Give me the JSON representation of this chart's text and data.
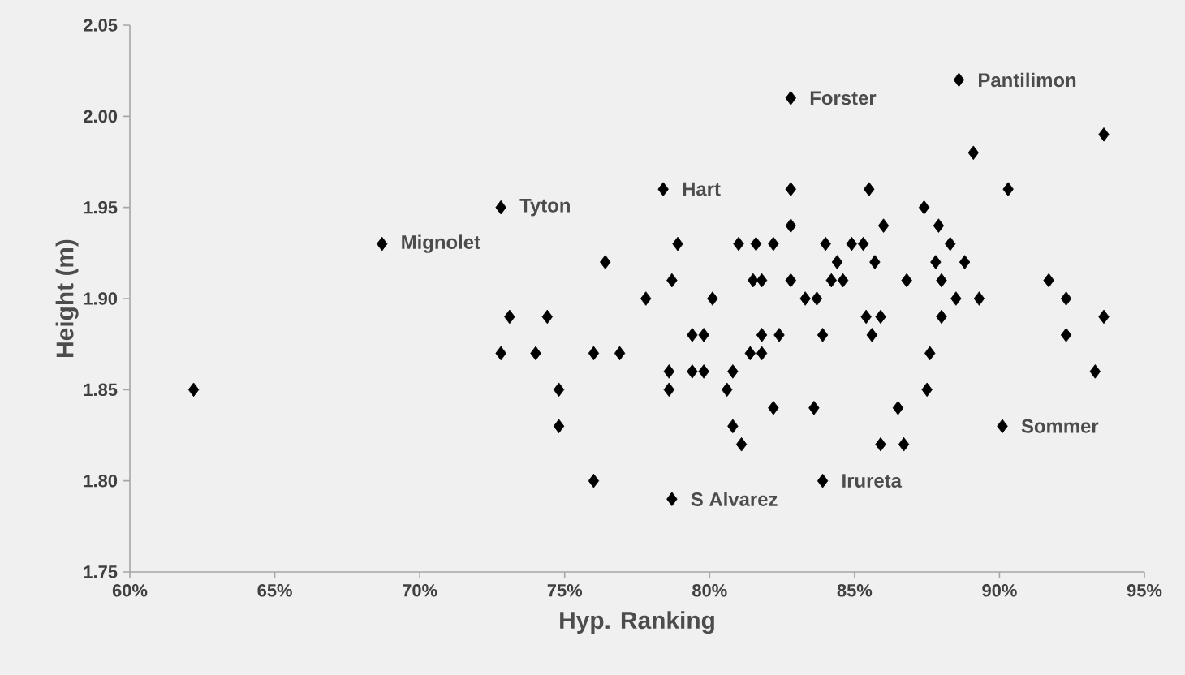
{
  "chart_data": {
    "type": "scatter",
    "xlabel": "Hyp. Ranking",
    "ylabel": "Height (m)",
    "marker": "diamond",
    "xlim": [
      60,
      95
    ],
    "ylim": [
      1.75,
      2.05
    ],
    "xticks": [
      {
        "value": 60,
        "label": "60%"
      },
      {
        "value": 65,
        "label": "65%"
      },
      {
        "value": 70,
        "label": "70%"
      },
      {
        "value": 75,
        "label": "75%"
      },
      {
        "value": 80,
        "label": "80%"
      },
      {
        "value": 85,
        "label": "85%"
      },
      {
        "value": 90,
        "label": "90%"
      },
      {
        "value": 95,
        "label": "95%"
      }
    ],
    "yticks": [
      {
        "value": 1.75,
        "label": "1.75"
      },
      {
        "value": 1.8,
        "label": "1.80"
      },
      {
        "value": 1.85,
        "label": "1.85"
      },
      {
        "value": 1.9,
        "label": "1.90"
      },
      {
        "value": 1.95,
        "label": "1.95"
      },
      {
        "value": 2.0,
        "label": "2.00"
      },
      {
        "value": 2.05,
        "label": "2.05"
      }
    ],
    "series": [
      {
        "color": "#000000",
        "x": [
          62.2,
          68.7,
          72.8,
          73.1,
          72.8,
          74.0,
          74.4,
          74.8,
          74.8,
          76.4,
          76.0,
          76.9,
          76.0,
          77.8,
          78.4,
          78.9,
          78.7,
          78.6,
          78.6,
          78.7,
          79.4,
          79.8,
          79.4,
          79.8,
          80.1,
          80.6,
          80.8,
          80.8,
          81.1,
          81.0,
          81.6,
          82.2,
          81.5,
          81.8,
          81.8,
          82.4,
          81.4,
          81.8,
          82.2,
          82.8,
          82.8,
          82.8,
          82.8,
          83.3,
          83.7,
          83.6,
          83.9,
          83.9,
          84.0,
          84.4,
          84.2,
          84.6,
          84.9,
          85.3,
          85.5,
          86.0,
          85.7,
          85.4,
          85.9,
          85.6,
          85.9,
          86.7,
          86.5,
          86.8,
          87.4,
          87.9,
          87.8,
          88.3,
          88.0,
          88.5,
          88.8,
          89.3,
          88.0,
          87.6,
          87.5,
          88.6,
          89.1,
          90.3,
          90.1,
          91.7,
          92.3,
          92.3,
          93.3,
          93.6,
          93.6
        ],
        "values": [
          1.85,
          1.93,
          1.95,
          1.89,
          1.87,
          1.87,
          1.89,
          1.85,
          1.83,
          1.92,
          1.87,
          1.87,
          1.8,
          1.9,
          1.96,
          1.93,
          1.91,
          1.86,
          1.85,
          1.79,
          1.88,
          1.88,
          1.86,
          1.86,
          1.9,
          1.85,
          1.86,
          1.83,
          1.82,
          1.93,
          1.93,
          1.93,
          1.91,
          1.91,
          1.88,
          1.88,
          1.87,
          1.87,
          1.84,
          2.01,
          1.96,
          1.94,
          1.91,
          1.9,
          1.9,
          1.84,
          1.88,
          1.8,
          1.93,
          1.92,
          1.91,
          1.91,
          1.93,
          1.93,
          1.96,
          1.94,
          1.92,
          1.89,
          1.89,
          1.88,
          1.82,
          1.82,
          1.84,
          1.91,
          1.95,
          1.94,
          1.92,
          1.93,
          1.91,
          1.9,
          1.92,
          1.9,
          1.89,
          1.87,
          1.85,
          2.02,
          1.98,
          1.96,
          1.83,
          1.91,
          1.9,
          1.88,
          1.86,
          1.99,
          1.89
        ]
      }
    ],
    "annotations": [
      {
        "text": "Mignolet",
        "x": 68.7,
        "y": 1.93
      },
      {
        "text": "Tyton",
        "x": 72.8,
        "y": 1.95
      },
      {
        "text": "Hart",
        "x": 78.4,
        "y": 1.96
      },
      {
        "text": "S Alvarez",
        "x": 78.7,
        "y": 1.79
      },
      {
        "text": "Forster",
        "x": 82.8,
        "y": 2.01
      },
      {
        "text": "Irureta",
        "x": 83.9,
        "y": 1.8
      },
      {
        "text": "Pantilimon",
        "x": 88.6,
        "y": 2.02
      },
      {
        "text": "Sommer",
        "x": 90.1,
        "y": 1.83
      }
    ]
  }
}
